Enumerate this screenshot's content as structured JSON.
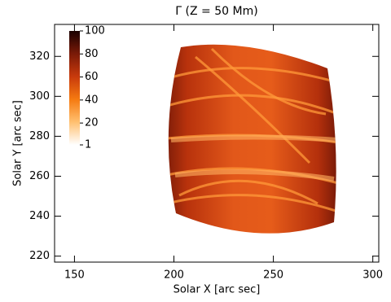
{
  "chart_data": {
    "type": "heatmap",
    "title": "Γ (Z = 50 Mm)",
    "x_label": "Solar X [arc sec]",
    "y_label": "Solar Y [arc sec]",
    "xlim": [
      140,
      303
    ],
    "xticks": [
      150,
      200,
      250,
      300
    ],
    "ylim": [
      217,
      336
    ],
    "yticks": [
      220,
      240,
      260,
      280,
      300,
      320
    ],
    "colorbar": {
      "clim": [
        1,
        100
      ],
      "ticks": [
        1,
        20,
        40,
        60,
        80,
        100
      ]
    }
  }
}
